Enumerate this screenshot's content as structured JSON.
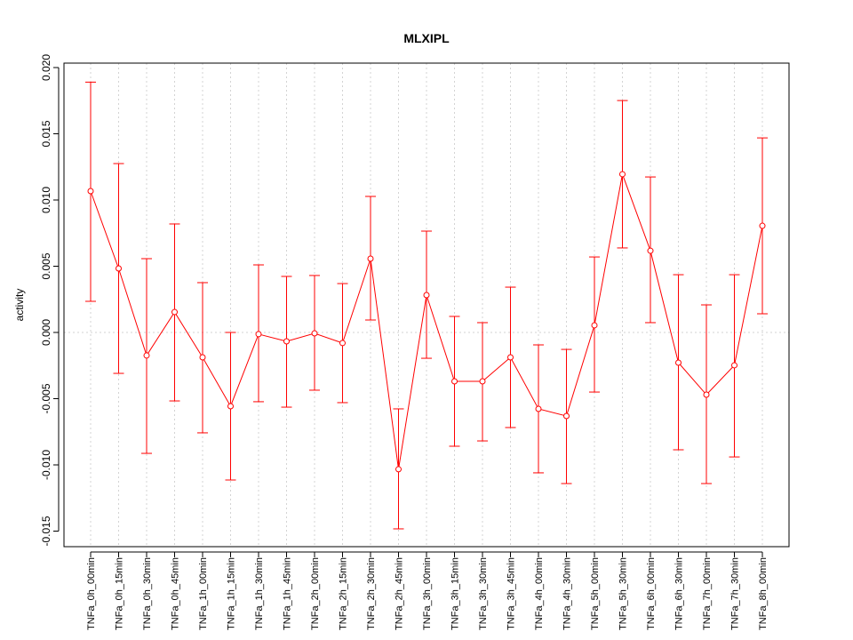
{
  "chart_data": {
    "type": "line",
    "title": "MLXIPL",
    "xlabel": "",
    "ylabel": "activity",
    "ylim": [
      -0.016,
      0.0202
    ],
    "yticks": [
      "-0.015",
      "-0.010",
      "-0.005",
      "0.000",
      "0.005",
      "0.010",
      "0.015",
      "0.020"
    ],
    "ytick_values": [
      -0.015,
      -0.01,
      -0.005,
      0,
      0.005,
      0.01,
      0.015,
      0.02
    ],
    "grid": true,
    "colors": {
      "line": "#ff0000",
      "grid": "#d3d3d3",
      "axis": "#000000"
    },
    "categories": [
      "TNFa_0h_00min",
      "TNFa_0h_15min",
      "TNFa_0h_30min",
      "TNFa_0h_45min",
      "TNFa_1h_00min",
      "TNFa_1h_15min",
      "TNFa_1h_30min",
      "TNFa_1h_45min",
      "TNFa_2h_00min",
      "TNFa_2h_15min",
      "TNFa_2h_30min",
      "TNFa_2h_45min",
      "TNFa_3h_00min",
      "TNFa_3h_15min",
      "TNFa_3h_30min",
      "TNFa_3h_45min",
      "TNFa_4h_00min",
      "TNFa_4h_30min",
      "TNFa_5h_00min",
      "TNFa_5h_30min",
      "TNFa_6h_00min",
      "TNFa_6h_30min",
      "TNFa_7h_00min",
      "TNFa_7h_30min",
      "TNFa_8h_00min"
    ],
    "series": [
      {
        "name": "activity",
        "values": [
          0.01067,
          0.00483,
          -0.00174,
          0.00154,
          -0.00188,
          -0.00557,
          -0.00013,
          -0.00067,
          -7e-05,
          -0.0008,
          0.00557,
          -0.01033,
          0.00282,
          -0.00369,
          -0.00369,
          -0.00188,
          -0.00577,
          -0.00631,
          0.00054,
          0.01195,
          0.00617,
          -0.00228,
          -0.0047,
          -0.00248,
          0.00805
        ],
        "upper": [
          0.0189,
          0.01275,
          0.00557,
          0.00819,
          0.00376,
          0.0,
          0.0051,
          0.00423,
          0.0043,
          0.00369,
          0.01027,
          -0.00577,
          0.00765,
          0.00121,
          0.00074,
          0.00342,
          -0.00094,
          -0.00128,
          0.0057,
          0.01751,
          0.01174,
          0.00436,
          0.00208,
          0.00436,
          0.01469
        ],
        "lower": [
          0.00235,
          -0.00309,
          -0.00913,
          -0.00517,
          -0.00758,
          -0.01114,
          -0.00523,
          -0.00564,
          -0.00436,
          -0.0053,
          0.00094,
          -0.01483,
          -0.00195,
          -0.00859,
          -0.00819,
          -0.00718,
          -0.0106,
          -0.01141,
          -0.0045,
          0.00638,
          0.00074,
          -0.00886,
          -0.01141,
          -0.0094,
          0.00141
        ]
      }
    ]
  }
}
